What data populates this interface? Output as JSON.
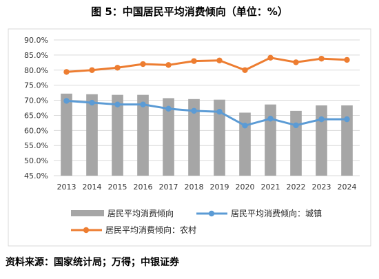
{
  "title": "图 5：中国居民平均消费倾向（单位：%）",
  "source": "资料来源：国家统计局；万得；中银证券",
  "colors": {
    "bar": "#a6a6a6",
    "urban": "#5b9bd5",
    "rural": "#ed7d31",
    "grid": "#d9d9d9"
  },
  "chart_data": {
    "type": "bar",
    "categories": [
      "2013",
      "2014",
      "2015",
      "2016",
      "2017",
      "2018",
      "2019",
      "2020",
      "2021",
      "2022",
      "2023",
      "2024"
    ],
    "ylim": [
      45,
      90
    ],
    "ytick_labels": [
      "45.0%",
      "50.0%",
      "55.0%",
      "60.0%",
      "65.0%",
      "70.0%",
      "75.0%",
      "80.0%",
      "85.0%",
      "90.0%"
    ],
    "grid": true,
    "legend_position": "bottom",
    "series": [
      {
        "name": "居民平均消费倾向",
        "type": "bar",
        "values": [
          72.2,
          72.0,
          71.8,
          71.8,
          70.7,
          70.4,
          70.2,
          65.9,
          68.6,
          66.5,
          68.3,
          68.3
        ]
      },
      {
        "name": "居民平均消费倾向：城镇",
        "type": "line",
        "values": [
          69.8,
          69.2,
          68.6,
          68.6,
          67.2,
          66.5,
          66.2,
          61.6,
          63.9,
          61.7,
          63.7,
          63.7
        ]
      },
      {
        "name": "居民平均消费倾向：农村",
        "type": "line",
        "values": [
          79.4,
          80.0,
          80.8,
          82.0,
          81.7,
          83.0,
          83.2,
          80.0,
          84.1,
          82.6,
          83.8,
          83.4
        ]
      }
    ]
  }
}
